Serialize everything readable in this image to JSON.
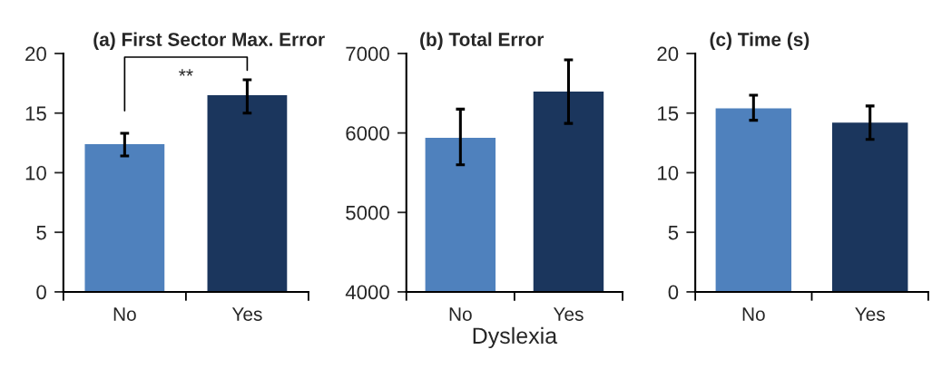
{
  "chart_data": [
    {
      "type": "bar",
      "title": "(a) First Sector Max. Error",
      "categories": [
        "No",
        "Yes"
      ],
      "values": [
        12.4,
        16.5
      ],
      "colors": [
        "#4f81bd",
        "#1b365d"
      ],
      "errors": [
        [
          11.4,
          13.3
        ],
        [
          15.0,
          17.8
        ]
      ],
      "ylim": [
        0,
        20
      ],
      "yticks": [
        0,
        5,
        10,
        15,
        20
      ],
      "annotations": [
        "**"
      ],
      "grid": false
    },
    {
      "type": "bar",
      "title": "(b) Total Error",
      "xlabel": "Dyslexia",
      "categories": [
        "No",
        "Yes"
      ],
      "values": [
        5940,
        6520
      ],
      "colors": [
        "#4f81bd",
        "#1b365d"
      ],
      "errors": [
        [
          5600,
          6300
        ],
        [
          6120,
          6920
        ]
      ],
      "ylim": [
        4000,
        7000
      ],
      "yticks": [
        4000,
        5000,
        6000,
        7000
      ],
      "grid": false
    },
    {
      "type": "bar",
      "title": "(c) Time (s)",
      "categories": [
        "No",
        "Yes"
      ],
      "values": [
        15.4,
        14.2
      ],
      "colors": [
        "#4f81bd",
        "#1b365d"
      ],
      "errors": [
        [
          14.4,
          16.5
        ],
        [
          12.8,
          15.6
        ]
      ],
      "ylim": [
        0,
        20
      ],
      "yticks": [
        0,
        5,
        10,
        15,
        20
      ],
      "grid": false
    }
  ]
}
